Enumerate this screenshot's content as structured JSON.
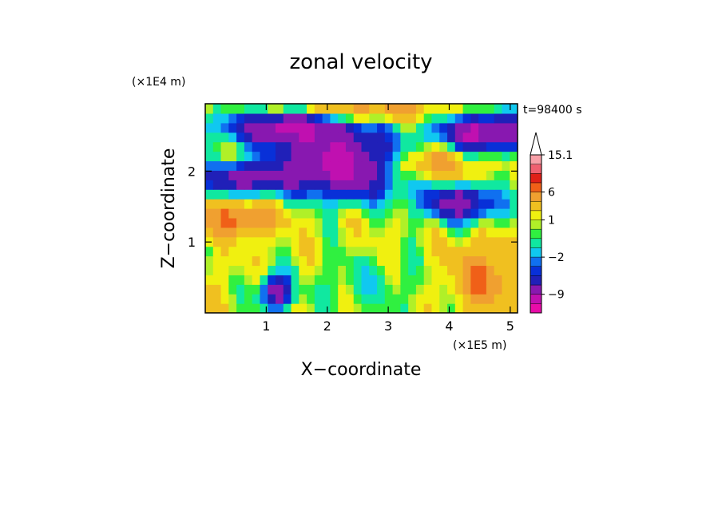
{
  "chart_data": {
    "type": "heatmap",
    "title": "zonal velocity",
    "xlabel": "X−coordinate",
    "ylabel": "Z−coordinate",
    "x_scale_label": "(×1E5 m)",
    "y_scale_label": "(×1E4 m)",
    "time_label": "t=98400 s",
    "xlim": [
      0.0,
      5.12
    ],
    "ylim": [
      0.0,
      2.95
    ],
    "x_ticks": [
      1,
      2,
      3,
      4,
      5
    ],
    "y_ticks": [
      1,
      2
    ],
    "colorbar": {
      "labels": [
        "15.1",
        "6",
        "1",
        "−2",
        "−9"
      ],
      "label_values": [
        15.1,
        6,
        1,
        -2,
        -9
      ],
      "levels": [
        -15,
        -12,
        -9,
        -6,
        -4,
        -3,
        -2,
        -1,
        0,
        0.5,
        1,
        2,
        4,
        6,
        8,
        10,
        12.5,
        15.1
      ],
      "colors": [
        "#e80ca8",
        "#c010b0",
        "#8818b0",
        "#2020b8",
        "#0830d8",
        "#1070f0",
        "#10c8f0",
        "#10e8a0",
        "#30f040",
        "#b0f028",
        "#f0f010",
        "#f0c020",
        "#f0a030",
        "#f06018",
        "#e02018",
        "#f06070",
        "#f8a0a8"
      ],
      "over_color": "#ffffff"
    },
    "field": {
      "nx": 40,
      "nz": 22,
      "description_of_values": "zonal velocity values sampled on a regular grid over xlim/zlim",
      "values": []
    }
  }
}
